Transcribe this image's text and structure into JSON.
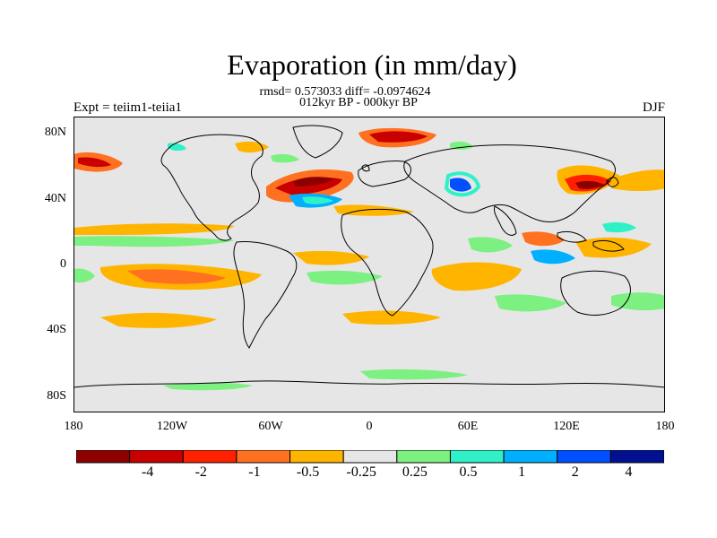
{
  "title": "Evaporation (in mm/day)",
  "stats_line1": "rmsd= 0.573033 diff= -0.0974624",
  "stats_line2": "012kyr BP - 000kyr BP",
  "left_label": "Expt = teiim1-teiia1",
  "right_label": "DJF",
  "lat_labels": [
    "80N",
    "40N",
    "0",
    "40S",
    "80S"
  ],
  "lon_labels": [
    "180",
    "120W",
    "60W",
    "0",
    "60E",
    "120E",
    "180"
  ],
  "colorbar": {
    "colors": [
      "#8c0000",
      "#c80000",
      "#ff2000",
      "#ff7020",
      "#ffb400",
      "#e6e6e6",
      "#7cf080",
      "#30f0c8",
      "#00b0ff",
      "#0050ff",
      "#001090"
    ],
    "labels": [
      "-4",
      "-2",
      "-1",
      "-0.5",
      "-0.25",
      "0.25",
      "0.5",
      "1",
      "2",
      "4"
    ]
  },
  "colors": {
    "background": "#e6e6e6",
    "coastline": "#000000"
  }
}
